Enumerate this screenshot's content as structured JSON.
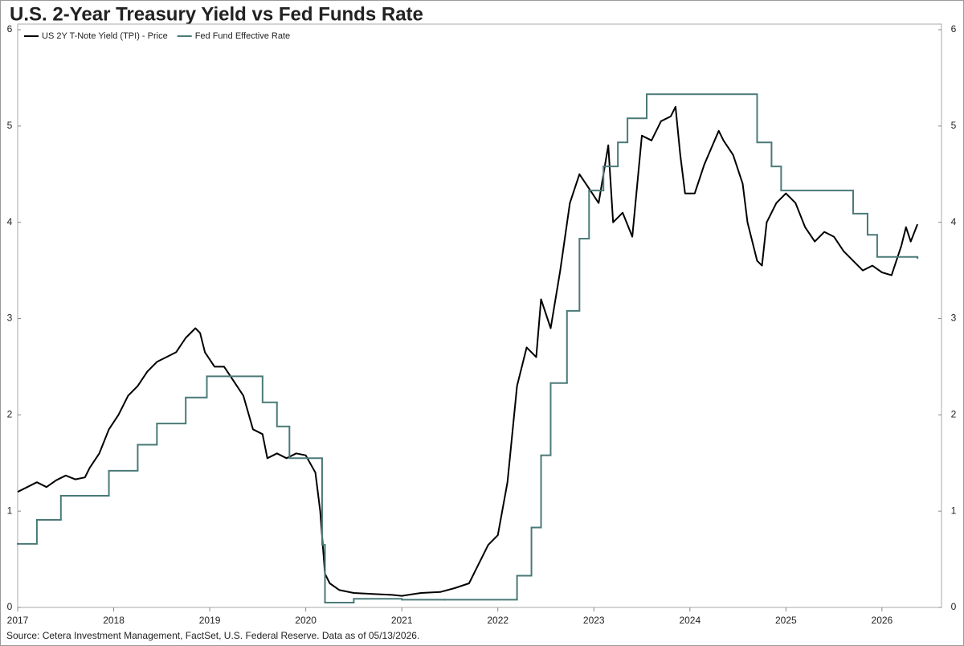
{
  "chart_data": {
    "type": "line",
    "title": "U.S. 2-Year Treasury Yield vs Fed Funds Rate",
    "source": "Source: Cetera Investment Management, FactSet, U.S. Federal Reserve. Data as of 05/13/2026.",
    "xlim": [
      2017,
      2026.62
    ],
    "xticks": [
      2017,
      2018,
      2019,
      2020,
      2021,
      2022,
      2023,
      2024,
      2025,
      2026
    ],
    "ylim": [
      0,
      6
    ],
    "yticks": [
      0,
      1,
      2,
      3,
      4,
      5,
      6
    ],
    "y2lim": [
      0,
      6
    ],
    "y2ticks": [
      0,
      1,
      2,
      3,
      4,
      5,
      6
    ],
    "legend": "top-left",
    "series": [
      {
        "name": "US 2Y T-Note Yield (TPI) - Price",
        "color": "#000000",
        "drawstyle": "line",
        "x": [
          2017.0,
          2017.1,
          2017.2,
          2017.3,
          2017.4,
          2017.5,
          2017.6,
          2017.7,
          2017.75,
          2017.85,
          2017.95,
          2018.05,
          2018.15,
          2018.25,
          2018.35,
          2018.45,
          2018.55,
          2018.65,
          2018.75,
          2018.85,
          2018.9,
          2018.95,
          2019.05,
          2019.15,
          2019.25,
          2019.35,
          2019.45,
          2019.55,
          2019.6,
          2019.7,
          2019.8,
          2019.9,
          2020.0,
          2020.1,
          2020.15,
          2020.2,
          2020.25,
          2020.35,
          2020.5,
          2020.7,
          2020.9,
          2021.0,
          2021.2,
          2021.4,
          2021.55,
          2021.7,
          2021.8,
          2021.9,
          2022.0,
          2022.1,
          2022.2,
          2022.3,
          2022.4,
          2022.45,
          2022.55,
          2022.65,
          2022.75,
          2022.85,
          2022.95,
          2023.05,
          2023.15,
          2023.2,
          2023.3,
          2023.4,
          2023.5,
          2023.6,
          2023.7,
          2023.8,
          2023.85,
          2023.9,
          2023.95,
          2024.05,
          2024.15,
          2024.3,
          2024.35,
          2024.45,
          2024.55,
          2024.6,
          2024.7,
          2024.75,
          2024.8,
          2024.9,
          2025.0,
          2025.1,
          2025.2,
          2025.3,
          2025.4,
          2025.5,
          2025.6,
          2025.7,
          2025.8,
          2025.9,
          2026.0,
          2026.1,
          2026.2,
          2026.25,
          2026.3,
          2026.37
        ],
        "values": [
          1.2,
          1.25,
          1.3,
          1.25,
          1.32,
          1.37,
          1.33,
          1.35,
          1.45,
          1.6,
          1.85,
          2.0,
          2.2,
          2.3,
          2.45,
          2.55,
          2.6,
          2.65,
          2.8,
          2.9,
          2.85,
          2.65,
          2.5,
          2.5,
          2.35,
          2.2,
          1.85,
          1.8,
          1.55,
          1.6,
          1.55,
          1.6,
          1.58,
          1.4,
          1.0,
          0.35,
          0.25,
          0.18,
          0.15,
          0.14,
          0.13,
          0.12,
          0.15,
          0.16,
          0.2,
          0.25,
          0.45,
          0.65,
          0.75,
          1.3,
          2.3,
          2.7,
          2.6,
          3.2,
          2.9,
          3.5,
          4.2,
          4.5,
          4.35,
          4.2,
          4.8,
          4.0,
          4.1,
          3.85,
          4.9,
          4.85,
          5.05,
          5.1,
          5.2,
          4.7,
          4.3,
          4.3,
          4.6,
          4.95,
          4.85,
          4.7,
          4.4,
          4.0,
          3.6,
          3.55,
          4.0,
          4.2,
          4.3,
          4.2,
          3.95,
          3.8,
          3.9,
          3.85,
          3.7,
          3.6,
          3.5,
          3.55,
          3.48,
          3.45,
          3.75,
          3.95,
          3.8,
          3.98
        ]
      },
      {
        "name": "Fed Fund Effective Rate",
        "color": "#4a7a78",
        "drawstyle": "steps-post",
        "x": [
          2017.0,
          2017.2,
          2017.45,
          2017.95,
          2018.25,
          2018.45,
          2018.75,
          2018.97,
          2019.55,
          2019.7,
          2019.83,
          2020.17,
          2020.2,
          2020.5,
          2021.0,
          2021.45,
          2022.2,
          2022.35,
          2022.45,
          2022.55,
          2022.72,
          2022.85,
          2022.95,
          2023.1,
          2023.25,
          2023.35,
          2023.55,
          2024.7,
          2024.85,
          2024.95,
          2025.7,
          2025.85,
          2025.95,
          2026.37
        ],
        "values": [
          0.66,
          0.91,
          1.16,
          1.42,
          1.69,
          1.91,
          2.18,
          2.4,
          2.13,
          1.88,
          1.55,
          0.65,
          0.05,
          0.09,
          0.08,
          0.08,
          0.33,
          0.83,
          1.58,
          2.33,
          3.08,
          3.83,
          4.33,
          4.58,
          4.83,
          5.08,
          5.33,
          4.83,
          4.58,
          4.33,
          4.09,
          3.87,
          3.64,
          3.63
        ]
      }
    ]
  }
}
